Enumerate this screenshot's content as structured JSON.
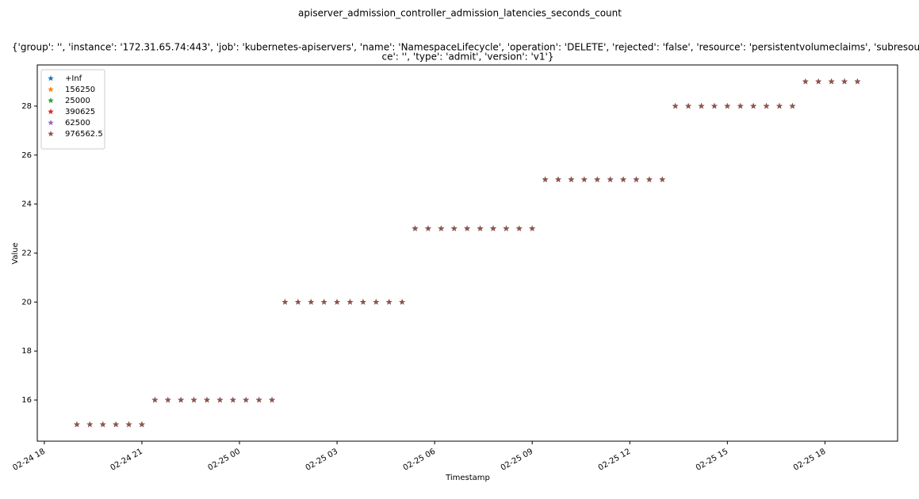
{
  "chart_data": {
    "type": "scatter",
    "title": "apiserver_admission_controller_admission_latencies_seconds_count",
    "subtitle": [
      "{'group': '', 'instance': '172.31.65.74:443', 'job': 'kubernetes-apiservers', 'name': 'NamespaceLifecycle', 'operation': 'DELETE', 'rejected': 'false', 'resource': 'persistentvolumeclaims', 'subresour",
      "ce': '', 'type': 'admit', 'version': 'v1'}"
    ],
    "xlabel": "Timestamp",
    "ylabel": "Value",
    "x": [
      "02-24 19:00",
      "02-24 19:24",
      "02-24 19:48",
      "02-24 20:12",
      "02-24 20:36",
      "02-24 21:00",
      "02-24 21:24",
      "02-24 21:48",
      "02-24 22:12",
      "02-24 22:36",
      "02-24 23:00",
      "02-24 23:24",
      "02-24 23:48",
      "02-25 00:12",
      "02-25 00:36",
      "02-25 01:00",
      "02-25 01:24",
      "02-25 01:48",
      "02-25 02:12",
      "02-25 02:36",
      "02-25 03:00",
      "02-25 03:24",
      "02-25 03:48",
      "02-25 04:12",
      "02-25 04:36",
      "02-25 05:00",
      "02-25 05:24",
      "02-25 05:48",
      "02-25 06:12",
      "02-25 06:36",
      "02-25 07:00",
      "02-25 07:24",
      "02-25 07:48",
      "02-25 08:12",
      "02-25 08:36",
      "02-25 09:00",
      "02-25 09:24",
      "02-25 09:48",
      "02-25 10:12",
      "02-25 10:36",
      "02-25 11:00",
      "02-25 11:24",
      "02-25 11:48",
      "02-25 12:12",
      "02-25 12:36",
      "02-25 13:00",
      "02-25 13:24",
      "02-25 13:48",
      "02-25 14:12",
      "02-25 14:36",
      "02-25 15:00",
      "02-25 15:24",
      "02-25 15:48",
      "02-25 16:12",
      "02-25 16:36",
      "02-25 17:00",
      "02-25 17:24",
      "02-25 17:48",
      "02-25 18:12",
      "02-25 18:36",
      "02-25 19:00"
    ],
    "series": [
      {
        "name": "+Inf",
        "color": "#1f77b4",
        "values": [
          15,
          15,
          15,
          15,
          15,
          15,
          16,
          16,
          16,
          16,
          16,
          16,
          16,
          16,
          16,
          16,
          20,
          20,
          20,
          20,
          20,
          20,
          20,
          20,
          20,
          20,
          23,
          23,
          23,
          23,
          23,
          23,
          23,
          23,
          23,
          23,
          25,
          25,
          25,
          25,
          25,
          25,
          25,
          25,
          25,
          25,
          28,
          28,
          28,
          28,
          28,
          28,
          28,
          28,
          28,
          28,
          29,
          29,
          29,
          29,
          29
        ]
      },
      {
        "name": "156250",
        "color": "#ff7f0e",
        "values": [
          15,
          15,
          15,
          15,
          15,
          15,
          16,
          16,
          16,
          16,
          16,
          16,
          16,
          16,
          16,
          16,
          20,
          20,
          20,
          20,
          20,
          20,
          20,
          20,
          20,
          20,
          23,
          23,
          23,
          23,
          23,
          23,
          23,
          23,
          23,
          23,
          25,
          25,
          25,
          25,
          25,
          25,
          25,
          25,
          25,
          25,
          28,
          28,
          28,
          28,
          28,
          28,
          28,
          28,
          28,
          28,
          29,
          29,
          29,
          29,
          29
        ]
      },
      {
        "name": "25000",
        "color": "#2ca02c",
        "values": [
          15,
          15,
          15,
          15,
          15,
          15,
          16,
          16,
          16,
          16,
          16,
          16,
          16,
          16,
          16,
          16,
          20,
          20,
          20,
          20,
          20,
          20,
          20,
          20,
          20,
          20,
          23,
          23,
          23,
          23,
          23,
          23,
          23,
          23,
          23,
          23,
          25,
          25,
          25,
          25,
          25,
          25,
          25,
          25,
          25,
          25,
          28,
          28,
          28,
          28,
          28,
          28,
          28,
          28,
          28,
          28,
          29,
          29,
          29,
          29,
          29
        ]
      },
      {
        "name": "390625",
        "color": "#d62728",
        "values": [
          15,
          15,
          15,
          15,
          15,
          15,
          16,
          16,
          16,
          16,
          16,
          16,
          16,
          16,
          16,
          16,
          20,
          20,
          20,
          20,
          20,
          20,
          20,
          20,
          20,
          20,
          23,
          23,
          23,
          23,
          23,
          23,
          23,
          23,
          23,
          23,
          25,
          25,
          25,
          25,
          25,
          25,
          25,
          25,
          25,
          25,
          28,
          28,
          28,
          28,
          28,
          28,
          28,
          28,
          28,
          28,
          29,
          29,
          29,
          29,
          29
        ]
      },
      {
        "name": "62500",
        "color": "#9467bd",
        "values": [
          15,
          15,
          15,
          15,
          15,
          15,
          16,
          16,
          16,
          16,
          16,
          16,
          16,
          16,
          16,
          16,
          20,
          20,
          20,
          20,
          20,
          20,
          20,
          20,
          20,
          20,
          23,
          23,
          23,
          23,
          23,
          23,
          23,
          23,
          23,
          23,
          25,
          25,
          25,
          25,
          25,
          25,
          25,
          25,
          25,
          25,
          28,
          28,
          28,
          28,
          28,
          28,
          28,
          28,
          28,
          28,
          29,
          29,
          29,
          29,
          29
        ]
      },
      {
        "name": "976562.5",
        "color": "#8c564b",
        "values": [
          15,
          15,
          15,
          15,
          15,
          15,
          16,
          16,
          16,
          16,
          16,
          16,
          16,
          16,
          16,
          16,
          20,
          20,
          20,
          20,
          20,
          20,
          20,
          20,
          20,
          20,
          23,
          23,
          23,
          23,
          23,
          23,
          23,
          23,
          23,
          23,
          25,
          25,
          25,
          25,
          25,
          25,
          25,
          25,
          25,
          25,
          28,
          28,
          28,
          28,
          28,
          28,
          28,
          28,
          28,
          28,
          29,
          29,
          29,
          29,
          29
        ]
      }
    ],
    "xlim": [
      "02-24 17:47",
      "02-25 20:14"
    ],
    "xticks": [
      {
        "value": "02-24 18:00",
        "label": "02-24 18"
      },
      {
        "value": "02-24 21:00",
        "label": "02-24 21"
      },
      {
        "value": "02-25 00:00",
        "label": "02-25 00"
      },
      {
        "value": "02-25 03:00",
        "label": "02-25 03"
      },
      {
        "value": "02-25 06:00",
        "label": "02-25 06"
      },
      {
        "value": "02-25 09:00",
        "label": "02-25 09"
      },
      {
        "value": "02-25 12:00",
        "label": "02-25 12"
      },
      {
        "value": "02-25 15:00",
        "label": "02-25 15"
      },
      {
        "value": "02-25 18:00",
        "label": "02-25 18"
      }
    ],
    "ylim": [
      14.32,
      29.68
    ],
    "yticks": [
      16,
      18,
      20,
      22,
      24,
      26,
      28
    ],
    "legend": "upper left",
    "marker": "star"
  }
}
